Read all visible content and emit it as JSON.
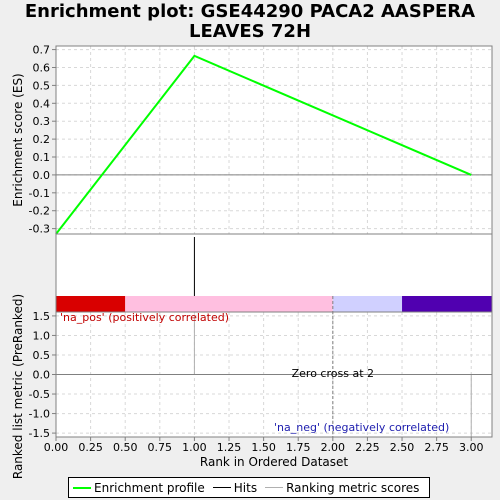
{
  "title": "Enrichment plot: GSE44290 PACA2 AASPERA\nLEAVES 72H",
  "chart_data": {
    "type": "line",
    "title": "Enrichment plot: GSE44290 PACA2 AASPERA LEAVES 72H",
    "xlabel": "Rank in Ordered Dataset",
    "xlim": [
      0,
      3.15
    ],
    "x_ticks": [
      "0.00",
      "0.25",
      "0.50",
      "0.75",
      "1.00",
      "1.25",
      "1.50",
      "1.75",
      "2.00",
      "2.25",
      "2.50",
      "2.75",
      "3.00"
    ],
    "x_tick_values": [
      0,
      0.25,
      0.5,
      0.75,
      1.0,
      1.25,
      1.5,
      1.75,
      2.0,
      2.25,
      2.5,
      2.75,
      3.0
    ],
    "top_panel": {
      "ylabel": "Enrichment score (ES)",
      "ylim": [
        -0.33,
        0.72
      ],
      "y_ticks": [
        "0.7",
        "0.6",
        "0.5",
        "0.4",
        "0.3",
        "0.2",
        "0.1",
        "0.0",
        "-0.1",
        "-0.2",
        "-0.3"
      ],
      "y_tick_values": [
        0.7,
        0.6,
        0.5,
        0.4,
        0.3,
        0.2,
        0.1,
        0.0,
        -0.1,
        -0.2,
        -0.3
      ],
      "series": [
        {
          "name": "Enrichment profile",
          "color": "#00ff00",
          "x": [
            0,
            1,
            3
          ],
          "y": [
            -0.33,
            0.665,
            0.0
          ]
        }
      ],
      "grid": true
    },
    "hits": {
      "name": "Hits",
      "x": [
        1
      ]
    },
    "color_bar": [
      {
        "from": 0,
        "to": 0.5,
        "color": "#d90000"
      },
      {
        "from": 0.5,
        "to": 2.0,
        "color": "#ffbfe0"
      },
      {
        "from": 2.0,
        "to": 2.5,
        "color": "#d0d0ff"
      },
      {
        "from": 2.5,
        "to": 3.15,
        "color": "#5000b0"
      }
    ],
    "bottom_panel": {
      "ylabel": "Ranked list metric (PreRanked)",
      "ylim": [
        -1.6,
        1.6
      ],
      "y_ticks": [
        "1.5",
        "1.0",
        "0.5",
        "0.0",
        "-0.5",
        "-1.0",
        "-1.5"
      ],
      "y_tick_values": [
        1.5,
        1.0,
        0.5,
        0.0,
        -0.5,
        -1.0,
        -1.5
      ],
      "series": [
        {
          "name": "Ranking metric scores",
          "color": "#b0b0b0",
          "x": [
            1,
            3
          ],
          "y": [
            1.5,
            -1.6
          ]
        }
      ],
      "zero_cross": 2,
      "annotations": {
        "pos": "'na_pos' (positively correlated)",
        "neg": "'na_neg' (negatively correlated)",
        "zero": "Zero cross at 2"
      }
    },
    "legend": {
      "placement": "bottom",
      "items": [
        {
          "label": "Enrichment profile",
          "color": "#00ff00"
        },
        {
          "label": "Hits",
          "color": "#000000"
        },
        {
          "label": "Ranking metric scores",
          "color": "#b0b0b0"
        }
      ]
    }
  }
}
